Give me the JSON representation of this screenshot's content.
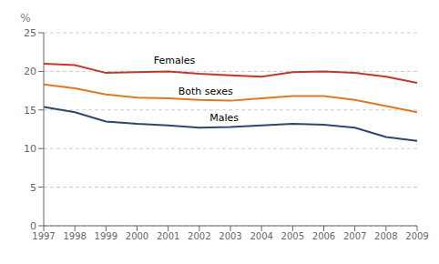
{
  "chart_data": {
    "type": "line",
    "x": [
      1997,
      1998,
      1999,
      2000,
      2001,
      2002,
      2003,
      2004,
      2005,
      2006,
      2007,
      2008,
      2009
    ],
    "series": [
      {
        "name": "Females",
        "color": "#c0392b",
        "values": [
          21.0,
          20.8,
          19.8,
          19.9,
          20.0,
          19.7,
          19.5,
          19.3,
          19.9,
          20.0,
          19.8,
          19.3,
          18.5
        ]
      },
      {
        "name": "Both sexes",
        "color": "#e07820",
        "values": [
          18.3,
          17.8,
          17.0,
          16.6,
          16.5,
          16.3,
          16.2,
          16.5,
          16.8,
          16.8,
          16.3,
          15.5,
          14.7
        ]
      },
      {
        "name": "Males",
        "color": "#2c4770",
        "values": [
          15.4,
          14.7,
          13.5,
          13.2,
          13.0,
          12.7,
          12.8,
          13.0,
          13.2,
          13.1,
          12.7,
          11.5,
          11.0
        ]
      }
    ],
    "xlim": [
      1997,
      2009
    ],
    "xticks": [
      1997,
      1998,
      1999,
      2000,
      2001,
      2002,
      2003,
      2004,
      2005,
      2006,
      2007,
      2008,
      2009
    ],
    "ylim": [
      0,
      25
    ],
    "yticks": [
      0,
      5,
      10,
      15,
      20,
      25
    ],
    "ylabel": "%",
    "grid": "y",
    "annotations": [
      {
        "text": "Females",
        "x": 2001.2,
        "y": 20.8
      },
      {
        "text": "Both sexes",
        "x": 2002.2,
        "y": 16.7
      },
      {
        "text": "Males",
        "x": 2002.8,
        "y": 13.3
      }
    ]
  }
}
